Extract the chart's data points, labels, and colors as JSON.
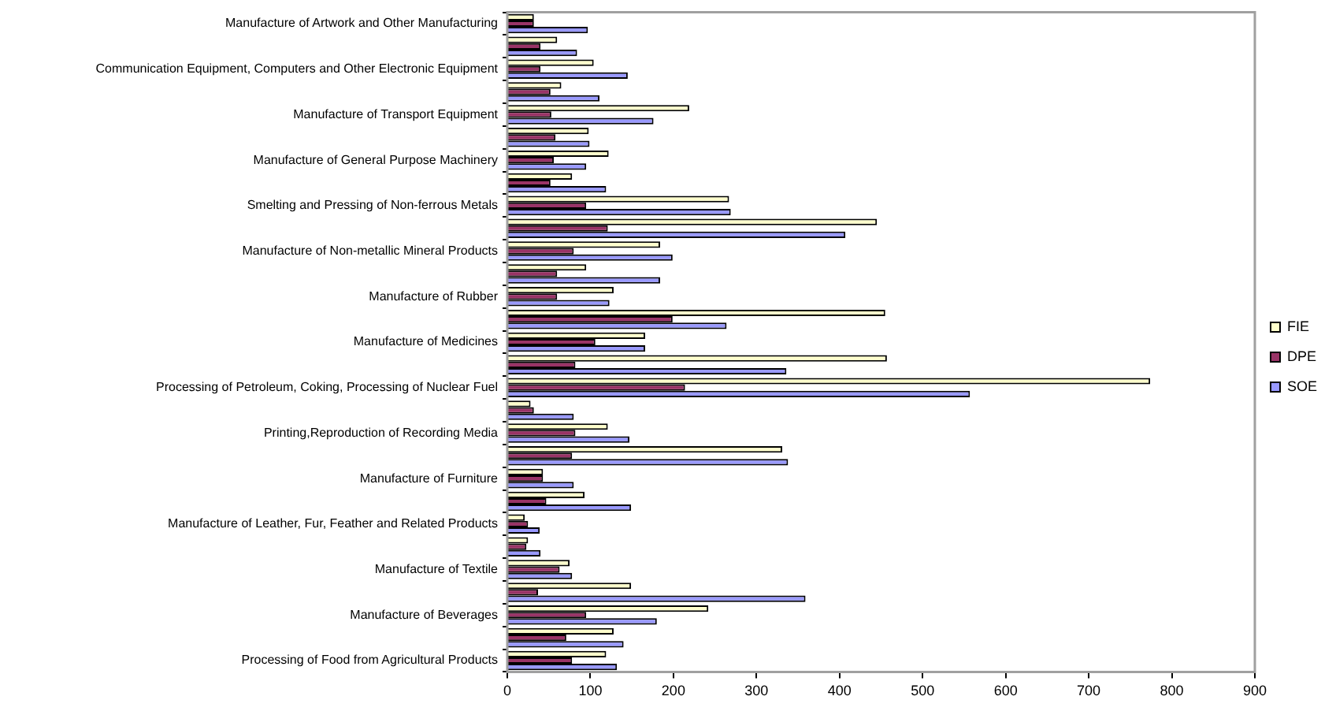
{
  "chart_data": {
    "type": "bar",
    "orientation": "horizontal",
    "categories": [
      "Manufacture of Artwork and Other Manufacturing",
      null,
      "Communication Equipment, Computers and Other Electronic Equipment",
      null,
      "Manufacture of Transport Equipment",
      null,
      "Manufacture of General Purpose Machinery",
      null,
      "Smelting and Pressing of Non-ferrous Metals",
      null,
      "Manufacture of Non-metallic Mineral Products",
      null,
      "Manufacture of Rubber",
      null,
      "Manufacture of Medicines",
      null,
      "Processing of Petroleum, Coking, Processing of Nuclear Fuel",
      null,
      "Printing,Reproduction of Recording Media",
      null,
      "Manufacture of Furniture",
      null,
      "Manufacture of Leather, Fur, Feather and Related Products",
      null,
      "Manufacture of Textile",
      null,
      "Manufacture of Beverages",
      null,
      "Processing of Food from Agricultural Products"
    ],
    "series": [
      {
        "name": "FIE",
        "color": "#ffffcc",
        "values": [
          32,
          60,
          104,
          65,
          219,
          98,
          122,
          78,
          267,
          445,
          184,
          95,
          128,
          455,
          166,
          457,
          774,
          28,
          121,
          331,
          43,
          93,
          21,
          25,
          75,
          149,
          242,
          128,
          119
        ]
      },
      {
        "name": "DPE",
        "color": "#993366",
        "values": [
          32,
          40,
          40,
          52,
          53,
          58,
          56,
          52,
          95,
          121,
          80,
          60,
          60,
          199,
          106,
          82,
          214,
          32,
          82,
          78,
          43,
          47,
          25,
          23,
          63,
          37,
          95,
          71,
          78
        ]
      },
      {
        "name": "SOE",
        "color": "#9999ff",
        "values": [
          97,
          84,
          145,
          111,
          176,
          99,
          95,
          119,
          269,
          407,
          199,
          184,
          123,
          264,
          166,
          336,
          557,
          80,
          147,
          338,
          80,
          149,
          39,
          40,
          78,
          359,
          180,
          140,
          132
        ]
      }
    ],
    "xlim": [
      0,
      900
    ],
    "xticks": [
      0,
      100,
      200,
      300,
      400,
      500,
      600,
      700,
      800,
      900
    ],
    "grid": false,
    "legend": "right"
  }
}
